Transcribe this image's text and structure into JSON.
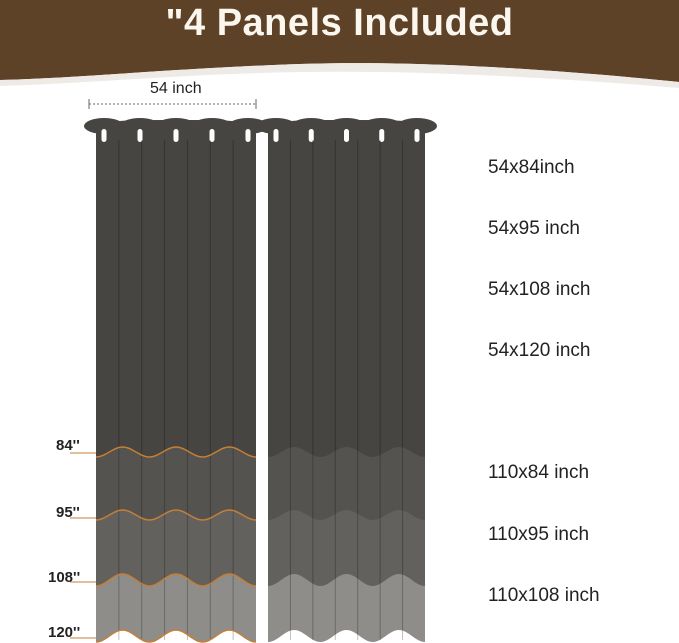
{
  "header": {
    "title": "\"4 Panels Included"
  },
  "dimension": {
    "width_label": "54 inch"
  },
  "length_marks": [
    "84''",
    "95''",
    "108''",
    "120''"
  ],
  "sizes": [
    "54x84inch",
    "54x95 inch",
    "54x108 inch",
    "54x120 inch",
    "110x84 inch",
    "110x95 inch",
    "110x108 inch"
  ],
  "colors": {
    "banner": "#5e4228",
    "curtain_84": "#474541",
    "curtain_95": "#555350",
    "curtain_108": "#63615d",
    "curtain_120": "#8f8d8a",
    "hem_line": "#c47f36"
  }
}
